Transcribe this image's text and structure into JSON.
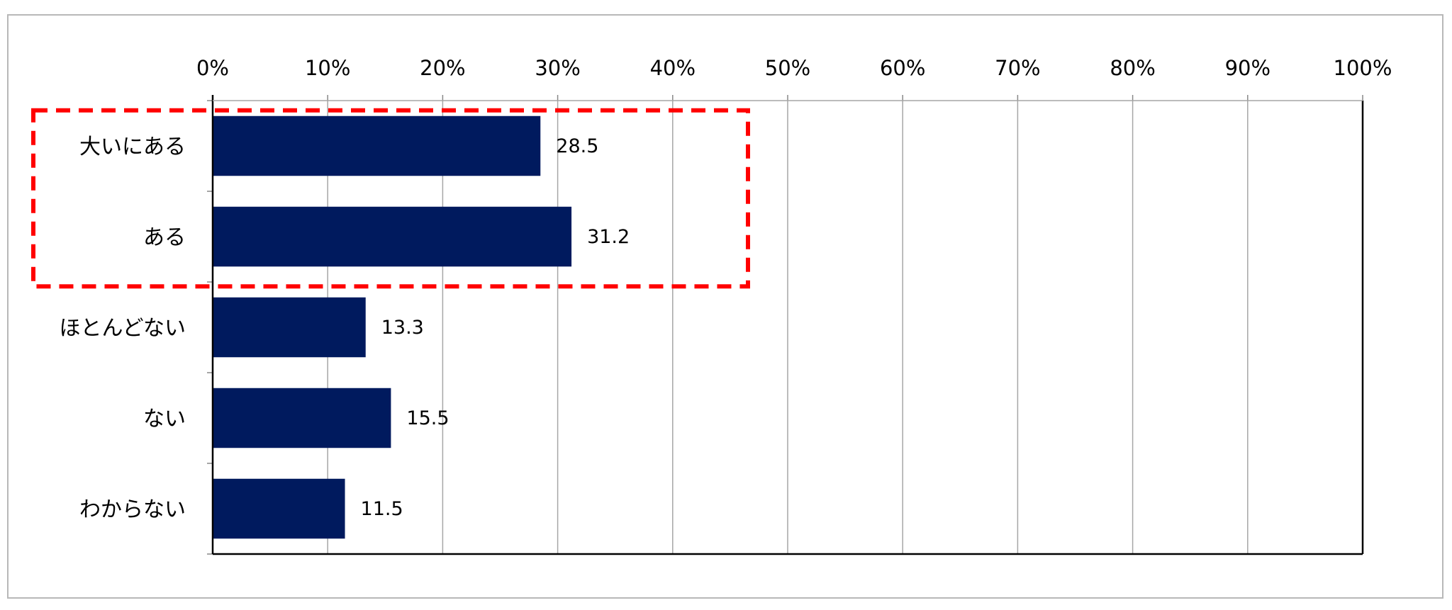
{
  "chart_data": {
    "type": "bar",
    "orientation": "horizontal",
    "categories": [
      "大いにある",
      "ある",
      "ほとんどない",
      "ない",
      "わからない"
    ],
    "values": [
      28.5,
      31.2,
      13.3,
      15.5,
      11.5
    ],
    "xlim": [
      0,
      100
    ],
    "x_ticks": [
      "0%",
      "10%",
      "20%",
      "30%",
      "40%",
      "50%",
      "60%",
      "70%",
      "80%",
      "90%",
      "100%"
    ],
    "x_axis_position": "top",
    "grid": "vertical",
    "legend": "none",
    "bar_color": "#001a5e",
    "highlight": {
      "categories": [
        "大いにある",
        "ある"
      ],
      "style": "dashed",
      "color": "#ff0000"
    }
  }
}
